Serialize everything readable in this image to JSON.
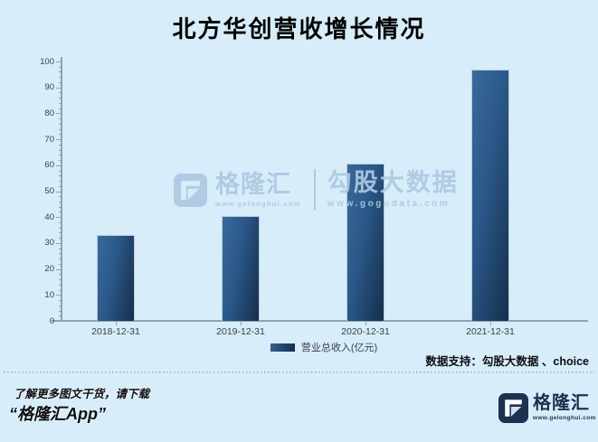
{
  "title": "北方华创营收增长情况",
  "chart_data": {
    "type": "bar",
    "title": "北方华创营收增长情况",
    "categories": [
      "2018-12-31",
      "2019-12-31",
      "2020-12-31",
      "2021-12-31"
    ],
    "values": [
      33.24,
      40.58,
      60.56,
      96.83
    ],
    "series_name": "营业总收入(亿元)",
    "xlabel": "",
    "ylabel": "",
    "ylim": [
      0,
      100
    ],
    "ytick_step": 10,
    "ytick_minor_step": 2,
    "grid": false,
    "legend_position": "bottom"
  },
  "legend": {
    "label": "营业总收入(亿元)"
  },
  "watermark": {
    "brand": "格隆汇",
    "brand_url": "www.gelonghui.com",
    "product": "勾股大数据",
    "product_url": "www.gogudata.com"
  },
  "footer": {
    "data_support": "数据支持：勾股大数据 、choice",
    "promo_line1": "了解更多图文干货，请下载",
    "promo_line2": "“格隆汇App”",
    "logo_text": "格隆汇",
    "logo_url": "www.gelonghui.com"
  },
  "colors": {
    "background": "#d7edf9",
    "bar_light": "#39699c",
    "bar_mid": "#2b5889",
    "bar_dark": "#152f4b",
    "bar_border": "#b7cbd9",
    "axis": "#8ea2b0",
    "tick_text": "#3a4046",
    "title_text": "#000000",
    "watermark": "#adc9e2",
    "navy": "#1d3150",
    "footer_text": "#0d0d12",
    "dotted_line": "#9db2c0"
  }
}
